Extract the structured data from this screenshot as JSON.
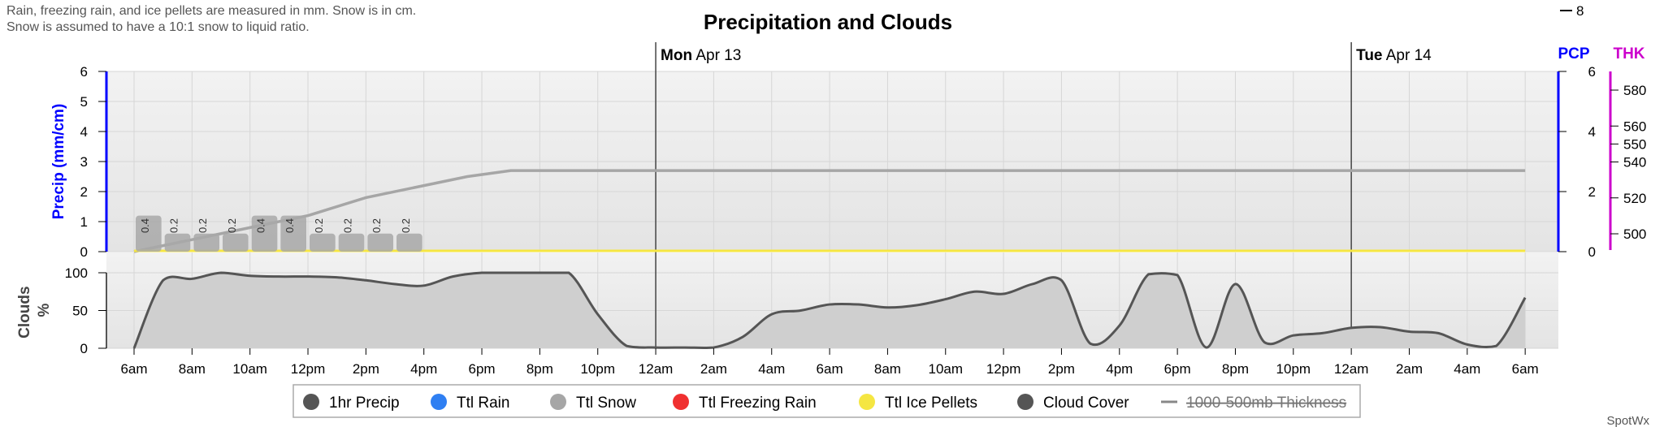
{
  "note_lines": [
    "Rain, freezing rain, and ice pellets are measured in mm. Snow is in cm.",
    "Snow is assumed to have a 10:1 snow to liquid ratio."
  ],
  "title": "Precipitation and Clouds",
  "days": [
    {
      "dow": "Mon",
      "date": "Apr 13"
    },
    {
      "dow": "Tue",
      "date": "Apr 14"
    }
  ],
  "brand": "SpotWx",
  "colors": {
    "precip_axis": "#0000ff",
    "thickness_axis": "#cc00cc",
    "snow_line": "#a6a6a6",
    "ice_pellets": "#f5e642",
    "cloud_fill": "#cfcfcf",
    "cloud_line": "#555555"
  },
  "legend": [
    {
      "label": "1hr Precip",
      "color": "#555555",
      "icon": "dot"
    },
    {
      "label": "Ttl Rain",
      "color": "#2f7ff2",
      "icon": "dot"
    },
    {
      "label": "Ttl Snow",
      "color": "#a6a6a6",
      "icon": "dot"
    },
    {
      "label": "Ttl Freezing Rain",
      "color": "#f03030",
      "icon": "dot"
    },
    {
      "label": "Ttl Ice Pellets",
      "color": "#f5e642",
      "icon": "dot"
    },
    {
      "label": "Cloud Cover",
      "color": "#555555",
      "icon": "dot"
    },
    {
      "label": "1000-500mb Thickness",
      "color": "#888888",
      "icon": "line",
      "hidden": true
    }
  ],
  "chart_data": [
    {
      "type": "bar",
      "panel": "precipitation",
      "ylabel": "Precip (mm/cm)",
      "ylim": [
        0,
        6
      ],
      "yticks": [
        "0",
        "1",
        "2",
        "3",
        "4",
        "5",
        "6"
      ],
      "right_axis_label": "PCP",
      "right_yticks": [
        "0",
        "2",
        "4",
        "6"
      ],
      "thickness_axis_label": "THK",
      "thickness_ticks": [
        "500",
        "520",
        "540",
        "550",
        "560",
        "580"
      ],
      "thickness_tick_top": "8",
      "x_ticks": [
        "6am",
        "8am",
        "10am",
        "12pm",
        "2pm",
        "4pm",
        "6pm",
        "8pm",
        "10pm",
        "12am",
        "2am",
        "4am",
        "6am",
        "8am",
        "10am",
        "12pm",
        "2pm",
        "4pm",
        "6pm",
        "8pm",
        "10pm",
        "12am",
        "2am",
        "4am",
        "6am"
      ],
      "x_hours_range": [
        0,
        48
      ],
      "hourly_precip": {
        "hours": [
          0,
          1,
          2,
          3,
          4,
          5,
          6,
          7,
          8,
          9
        ],
        "values": [
          0.4,
          0.2,
          0.2,
          0.2,
          0.4,
          0.4,
          0.2,
          0.2,
          0.2,
          0.2
        ],
        "labels": [
          "0.4",
          "0.2",
          "0.2",
          "0.2",
          "0.4",
          "0.4",
          "0.2",
          "0.2",
          "0.2",
          "0.2"
        ]
      },
      "series": [
        {
          "name": "Ttl Snow",
          "type": "line",
          "x_hours": [
            0,
            2,
            4,
            6,
            8,
            10,
            11.5,
            13,
            48
          ],
          "values": [
            0.0,
            0.4,
            0.8,
            1.2,
            1.8,
            2.2,
            2.5,
            2.7,
            2.7
          ]
        },
        {
          "name": "Ttl Ice Pellets",
          "type": "line",
          "x_hours": [
            0,
            48
          ],
          "values": [
            0,
            0
          ]
        }
      ]
    },
    {
      "type": "area",
      "panel": "clouds",
      "ylabel": "Clouds %",
      "ylabel_lines": [
        "Clouds",
        "%"
      ],
      "ylim": [
        0,
        100
      ],
      "yticks": [
        "0",
        "50",
        "100"
      ],
      "series": [
        {
          "name": "Cloud Cover",
          "x_hours": [
            0,
            1,
            2,
            3,
            4,
            5,
            6,
            7,
            8,
            9,
            10,
            11,
            12,
            13,
            14,
            15,
            16,
            17,
            18,
            19,
            20,
            21,
            22,
            23,
            24,
            25,
            26,
            27,
            28,
            29,
            30,
            31,
            32,
            33,
            34,
            35,
            36,
            37,
            38,
            39,
            40,
            41,
            42,
            43,
            44,
            45,
            46,
            47,
            48
          ],
          "values": [
            0,
            90,
            92,
            100,
            96,
            95,
            95,
            94,
            90,
            85,
            83,
            95,
            100,
            100,
            100,
            100,
            45,
            3,
            1,
            1,
            1,
            15,
            45,
            50,
            58,
            58,
            54,
            57,
            65,
            75,
            72,
            85,
            90,
            6,
            30,
            98,
            97,
            1,
            85,
            8,
            17,
            20,
            27,
            28,
            22,
            20,
            5,
            3,
            67
          ]
        }
      ]
    }
  ]
}
